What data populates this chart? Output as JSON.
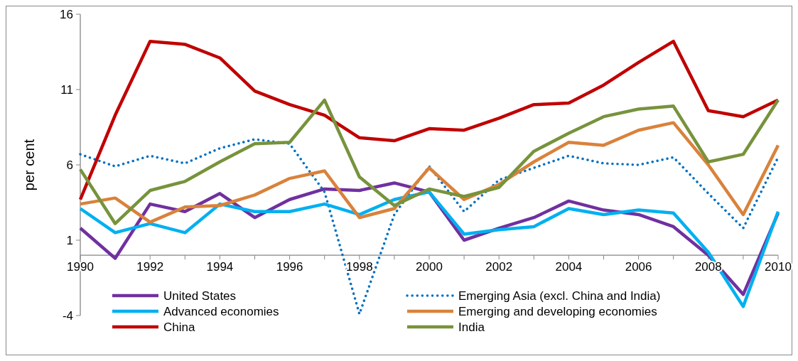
{
  "chart_data": {
    "type": "line",
    "ylabel": "per cent",
    "x": [
      1990,
      1991,
      1992,
      1993,
      1994,
      1995,
      1996,
      1997,
      1998,
      1999,
      2000,
      2001,
      2002,
      2003,
      2004,
      2005,
      2006,
      2007,
      2008,
      2009,
      2010
    ],
    "xlim": [
      1990,
      2010
    ],
    "xticks": [
      1990,
      1992,
      1994,
      1996,
      1998,
      2000,
      2002,
      2004,
      2006,
      2008,
      2010
    ],
    "ylim": [
      -4,
      16
    ],
    "yticks": [
      -4,
      1,
      6,
      11,
      16
    ],
    "grid": false,
    "legend": "bottom",
    "marker": "none",
    "series": [
      {
        "name": "United States",
        "color": "#7030a0",
        "line_style": "solid",
        "values": [
          1.8,
          -0.2,
          3.4,
          2.9,
          4.1,
          2.5,
          3.7,
          4.4,
          4.3,
          4.8,
          4.2,
          1.0,
          1.8,
          2.5,
          3.6,
          3.0,
          2.7,
          1.9,
          0.0,
          -2.6,
          2.8
        ]
      },
      {
        "name": "Emerging Asia (excl. China and India)",
        "color": "#0070c0",
        "line_style": "dotted",
        "values": [
          6.7,
          5.9,
          6.6,
          6.1,
          7.1,
          7.7,
          7.4,
          4.2,
          -3.9,
          2.7,
          5.9,
          2.9,
          5.0,
          5.8,
          6.6,
          6.1,
          6.0,
          6.5,
          4.1,
          1.8,
          6.5
        ]
      },
      {
        "name": "Advanced economies",
        "color": "#00b0f0",
        "line_style": "solid",
        "values": [
          3.1,
          1.5,
          2.1,
          1.5,
          3.4,
          2.9,
          2.9,
          3.4,
          2.7,
          3.7,
          4.2,
          1.4,
          1.7,
          1.9,
          3.1,
          2.7,
          3.0,
          2.8,
          0.2,
          -3.4,
          2.9
        ]
      },
      {
        "name": "Emerging and developing economies",
        "color": "#d9823b",
        "line_style": "solid",
        "values": [
          3.4,
          3.8,
          2.2,
          3.2,
          3.3,
          4.0,
          5.1,
          5.6,
          2.5,
          3.1,
          5.8,
          3.7,
          4.7,
          6.2,
          7.5,
          7.3,
          8.3,
          8.8,
          6.0,
          2.7,
          7.3
        ]
      },
      {
        "name": "China",
        "color": "#c00000",
        "line_style": "solid",
        "values": [
          3.7,
          9.3,
          14.2,
          14.0,
          13.1,
          10.9,
          10.0,
          9.3,
          7.8,
          7.6,
          8.4,
          8.3,
          9.1,
          10.0,
          10.1,
          11.3,
          12.8,
          14.2,
          9.6,
          9.2,
          10.3
        ]
      },
      {
        "name": "India",
        "color": "#77933c",
        "line_style": "solid",
        "values": [
          5.7,
          2.1,
          4.3,
          4.9,
          6.2,
          7.4,
          7.5,
          10.3,
          5.2,
          3.3,
          4.4,
          3.9,
          4.5,
          6.9,
          8.1,
          9.2,
          9.7,
          9.9,
          6.2,
          6.7,
          10.3
        ]
      }
    ]
  }
}
